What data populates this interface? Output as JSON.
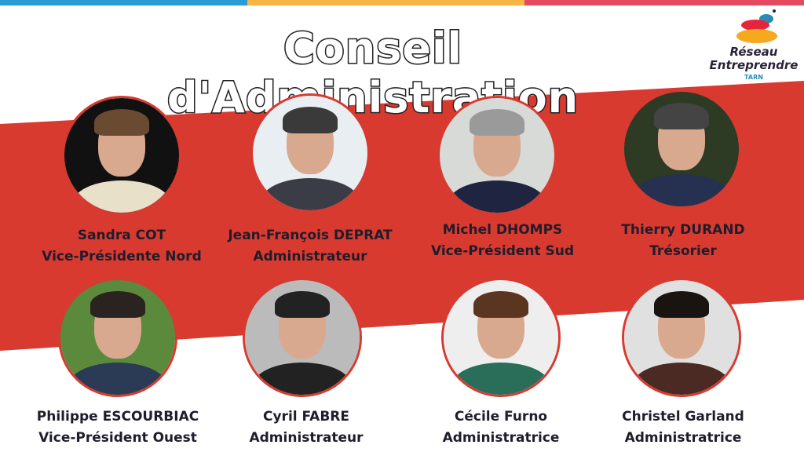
{
  "colors": {
    "stripe_blue": "#2a9cd3",
    "stripe_yellow": "#f6b545",
    "stripe_pink": "#e4495f",
    "band_red": "#d93a30",
    "text_dark": "#1f1d2b"
  },
  "title": "Conseil d'Administration",
  "logo": {
    "line1": "Réseau",
    "line2": "Entreprendre",
    "sub": "TARN"
  },
  "members": [
    {
      "name": "Sandra COT",
      "role": "Vice-Présidente Nord"
    },
    {
      "name": "Jean-François DEPRAT",
      "role": "Administrateur"
    },
    {
      "name": "Michel DHOMPS",
      "role": "Vice-Président Sud"
    },
    {
      "name": "Thierry DURAND",
      "role": "Trésorier"
    },
    {
      "name": "Philippe ESCOURBIAC",
      "role": "Vice-Président Ouest"
    },
    {
      "name": "Cyril FABRE",
      "role": "Administrateur"
    },
    {
      "name": "Cécile Furno",
      "role": "Administratrice"
    },
    {
      "name": "Christel Garland",
      "role": "Administratrice"
    }
  ]
}
